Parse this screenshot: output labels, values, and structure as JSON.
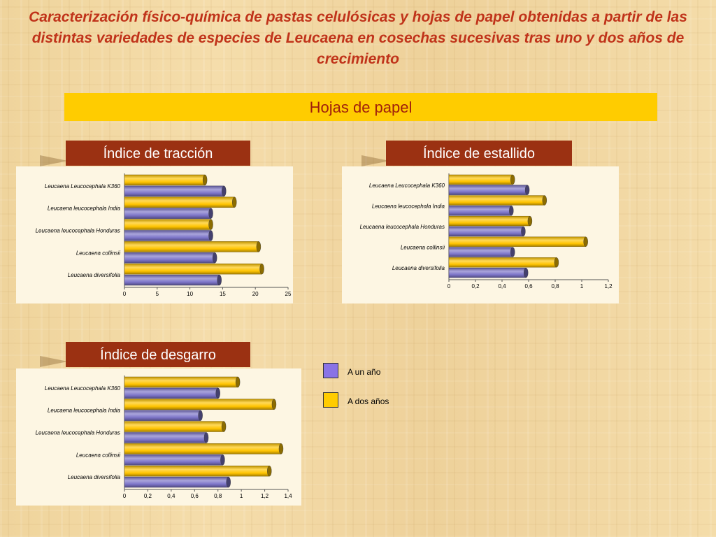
{
  "title": "Caracterización físico-química de pastas celulósicas y hojas de papel obtenidas a partir de las distintas variedades de especies de Leucaena en cosechas sucesivas tras uno y dos años de crecimiento",
  "banner": "Hojas de papel",
  "legend": {
    "items": [
      {
        "label": "A un año",
        "color": "#8a73e6"
      },
      {
        "label": "A dos años",
        "color": "#ffcc00"
      }
    ]
  },
  "colors": {
    "one_year_bar": "#7c74c8",
    "two_year_bar": "#ffc400",
    "title": "#c0331a",
    "tab": "#9b3112"
  },
  "chart_data": [
    {
      "type": "bar",
      "orientation": "horizontal",
      "title": "Índice de tracción",
      "categories": [
        "Leucaena Leucocephala K360",
        "Leucaena leucocephala India",
        "Leucaena leucocephala Honduras",
        "Leucaena collinsii",
        "Leucaena diversifolia"
      ],
      "series": [
        {
          "name": "A un año",
          "values": [
            15.2,
            13.2,
            13.2,
            13.8,
            14.5
          ]
        },
        {
          "name": "A dos años",
          "values": [
            12.3,
            16.8,
            13.2,
            20.5,
            21.0
          ]
        }
      ],
      "xlim": [
        0,
        25
      ],
      "xticks": [
        "0",
        "5",
        "10",
        "15",
        "20",
        "25"
      ],
      "grid": false
    },
    {
      "type": "bar",
      "orientation": "horizontal",
      "title": "Índice de estallido",
      "categories": [
        "Leucaena Leucocephala K360",
        "Leucaena leucocephala India",
        "Leucaena leucocephala Honduras",
        "Leucaena collinsii",
        "Leucaena diversifolia"
      ],
      "series": [
        {
          "name": "A un año",
          "values": [
            0.59,
            0.47,
            0.56,
            0.48,
            0.58
          ]
        },
        {
          "name": "A dos años",
          "values": [
            0.48,
            0.72,
            0.61,
            1.03,
            0.81
          ]
        }
      ],
      "xlim": [
        0,
        1.2
      ],
      "xticks": [
        "0",
        "0,2",
        "0,4",
        "0,6",
        "0,8",
        "1",
        "1,2"
      ],
      "grid": false
    },
    {
      "type": "bar",
      "orientation": "horizontal",
      "title": "Índice de desgarro",
      "categories": [
        "Leucaena Leucocephala K360",
        "Leucaena leucocephala India",
        "Leucaena leucocephala Honduras",
        "Leucaena collinsii",
        "Leucaena diversifolia"
      ],
      "series": [
        {
          "name": "A un año",
          "values": [
            0.8,
            0.65,
            0.7,
            0.84,
            0.89
          ]
        },
        {
          "name": "A dos años",
          "values": [
            0.97,
            1.28,
            0.85,
            1.34,
            1.24
          ]
        }
      ],
      "xlim": [
        0,
        1.4
      ],
      "xticks": [
        "0",
        "0,2",
        "0,4",
        "0,6",
        "0,8",
        "1",
        "1,2",
        "1,4"
      ],
      "grid": false
    }
  ]
}
